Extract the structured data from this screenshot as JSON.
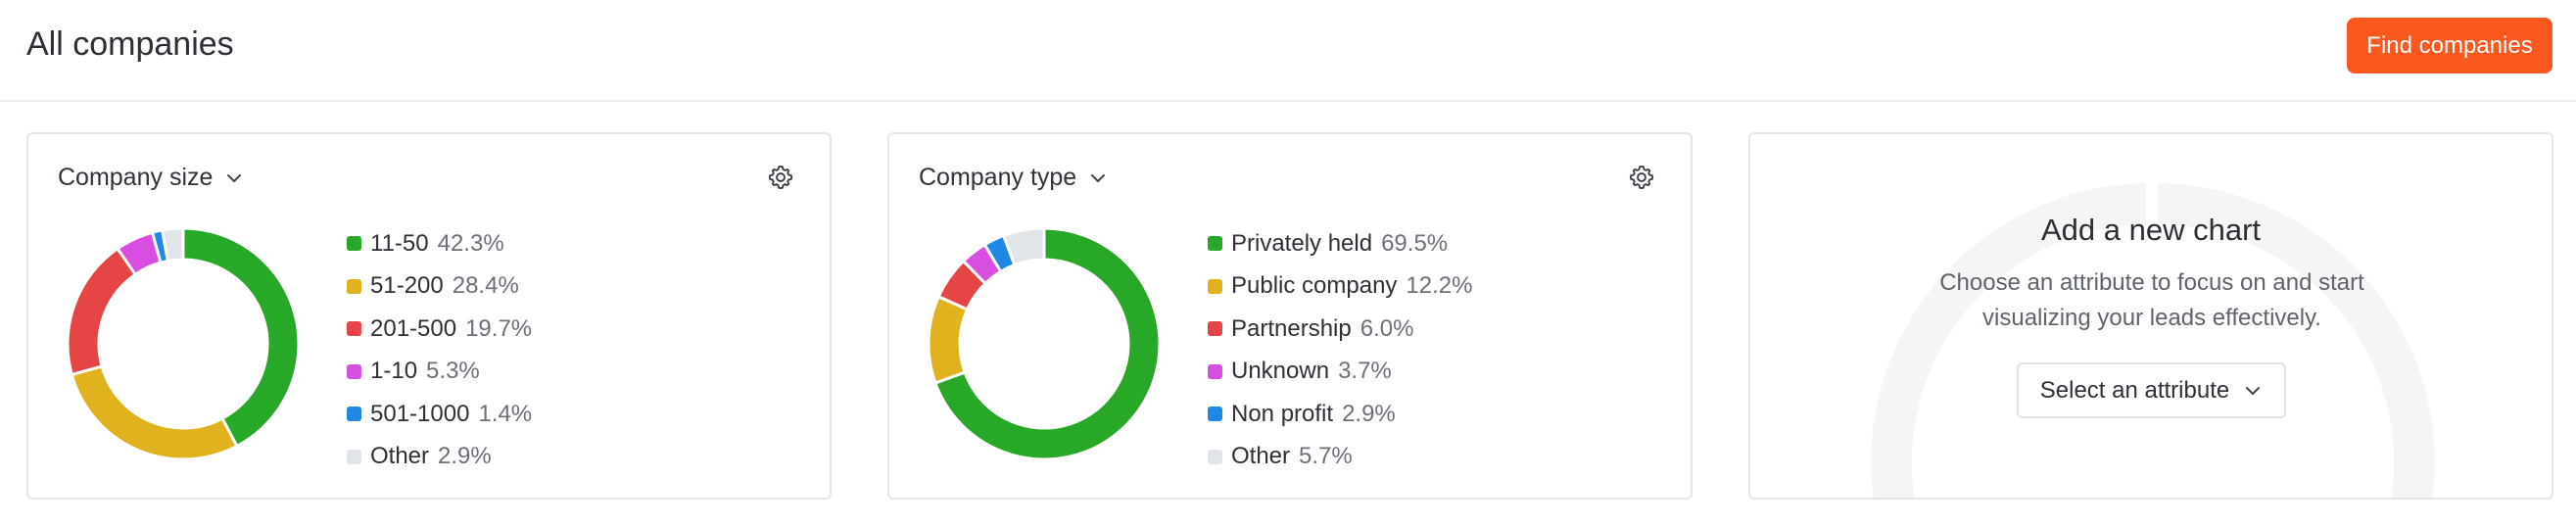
{
  "header": {
    "title": "All companies",
    "find_button": "Find companies"
  },
  "colors": {
    "accent": "#f9591f"
  },
  "chart_data": [
    {
      "type": "pie",
      "title": "Company size",
      "categories": [
        "11-50",
        "51-200",
        "201-500",
        "1-10",
        "501-1000",
        "Other"
      ],
      "values": [
        42.3,
        28.4,
        19.7,
        5.3,
        1.4,
        2.9
      ],
      "labels": [
        "42.3%",
        "28.4%",
        "19.7%",
        "5.3%",
        "1.4%",
        "2.9%"
      ],
      "colors": [
        "#27a827",
        "#e0b21d",
        "#e64545",
        "#d84ee0",
        "#1f88e5",
        "#e1e4e8"
      ],
      "legend": "right"
    },
    {
      "type": "pie",
      "title": "Company type",
      "categories": [
        "Privately held",
        "Public company",
        "Partnership",
        "Unknown",
        "Non profit",
        "Other"
      ],
      "values": [
        69.5,
        12.2,
        6.0,
        3.7,
        2.9,
        5.7
      ],
      "labels": [
        "69.5%",
        "12.2%",
        "6.0%",
        "3.7%",
        "2.9%",
        "5.7%"
      ],
      "colors": [
        "#27a827",
        "#e0b21d",
        "#e64545",
        "#d84ee0",
        "#1f88e5",
        "#e1e4e8"
      ],
      "legend": "right"
    }
  ],
  "add_chart": {
    "title": "Add a new chart",
    "description": "Choose an attribute to focus on and start visualizing your leads effectively.",
    "select_label": "Select an attribute"
  },
  "icons": {
    "dropdown": "chevron-down-icon",
    "settings": "gear-icon"
  }
}
